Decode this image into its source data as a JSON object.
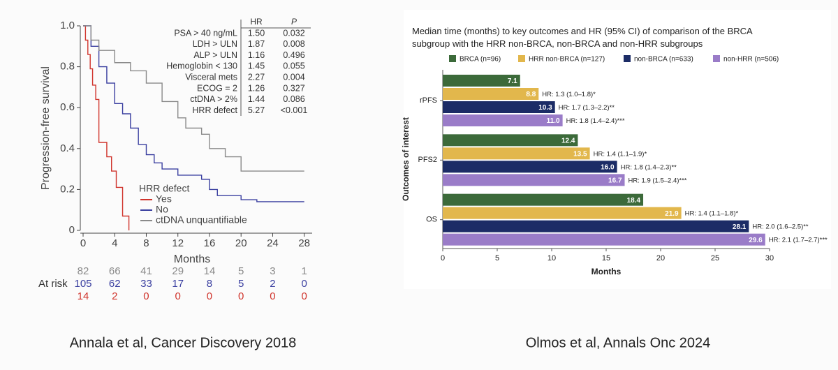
{
  "chart_data": [
    {
      "type": "step",
      "x_label": "Months",
      "y_label": "Progression-free survival",
      "xlim": [
        0,
        29
      ],
      "xticks": [
        0,
        4,
        8,
        12,
        16,
        20,
        24,
        28
      ],
      "ylim": [
        0,
        1
      ],
      "yticks": [
        0,
        0.2,
        0.4,
        0.6,
        0.8,
        {
          "value": 1,
          "label": "1.0"
        }
      ],
      "legend_title": "HRR defect",
      "series": [
        {
          "name": "Yes",
          "color": "#d0342c",
          "x": [
            0,
            0.3,
            0.6,
            0.9,
            1.2,
            1.6,
            2.0,
            3.0,
            3.6,
            4.2,
            5.0,
            5.8
          ],
          "y": [
            1,
            0.93,
            0.86,
            0.79,
            0.71,
            0.64,
            0.43,
            0.36,
            0.29,
            0.21,
            0.07,
            0
          ],
          "at_risk": [
            14,
            2,
            0,
            0,
            0,
            0,
            0,
            0
          ]
        },
        {
          "name": "No",
          "color": "#3a3fa0",
          "x": [
            0,
            1,
            2,
            3,
            4,
            5,
            6,
            7,
            8,
            9,
            10,
            12,
            15,
            16,
            17,
            20,
            22,
            28
          ],
          "y": [
            1,
            0.9,
            0.8,
            0.72,
            0.62,
            0.57,
            0.5,
            0.42,
            0.37,
            0.33,
            0.3,
            0.27,
            0.25,
            0.2,
            0.17,
            0.15,
            0.14,
            0.14
          ],
          "at_risk": [
            105,
            62,
            33,
            17,
            8,
            5,
            2,
            0
          ]
        },
        {
          "name": "ctDNA unquantifiable",
          "color": "#8a8a8a",
          "x": [
            0,
            1,
            2,
            4,
            6,
            8,
            10,
            12,
            13,
            15,
            16,
            18,
            20,
            28
          ],
          "y": [
            1,
            0.93,
            0.88,
            0.82,
            0.78,
            0.72,
            0.63,
            0.55,
            0.5,
            0.47,
            0.4,
            0.36,
            0.29,
            0.29
          ],
          "at_risk": [
            82,
            66,
            41,
            29,
            14,
            5,
            3,
            1
          ]
        }
      ],
      "at_risk_label": "At risk",
      "table": {
        "columns": [
          "HR",
          "P"
        ],
        "rows": [
          [
            "PSA > 40 ng/mL",
            "1.50",
            "0.032"
          ],
          [
            "LDH > ULN",
            "1.87",
            "0.008"
          ],
          [
            "ALP > ULN",
            "1.16",
            "0.496"
          ],
          [
            "Hemoglobin < 130",
            "1.45",
            "0.055"
          ],
          [
            "Visceral mets",
            "2.27",
            "0.004"
          ],
          [
            "ECOG = 2",
            "1.26",
            "0.327"
          ],
          [
            "ctDNA > 2%",
            "1.44",
            "0.086"
          ],
          [
            "HRR defect",
            "5.27",
            "<0.001"
          ]
        ]
      },
      "caption": "Annala et al, Cancer Discovery 2018"
    },
    {
      "type": "hbar",
      "title": "Median time (months) to key outcomes and HR (95% CI) of comparison of the BRCA subgroup with the HRR non-BRCA, non-BRCA and non-HRR subgroups",
      "x_label": "Months",
      "y_label": "Outcomes of interest",
      "xlim": [
        0,
        30
      ],
      "xticks": [
        0,
        5,
        10,
        15,
        20,
        25,
        30
      ],
      "categories": [
        "rPFS",
        "PFS2",
        "OS"
      ],
      "series": [
        {
          "name": "BRCA (n=96)",
          "color": "#3c6a3a",
          "values": [
            7.1,
            12.4,
            18.4
          ]
        },
        {
          "name": "HRR non-BRCA (n=127)",
          "color": "#e2b74c",
          "values": [
            8.8,
            13.5,
            21.9
          ],
          "hr_labels": [
            "HR: 1.3 (1.0–1.8)*",
            "HR: 1.4 (1.1–1.9)*",
            "HR: 1.4 (1.1–1.8)*"
          ]
        },
        {
          "name": "non-BRCA (n=633)",
          "color": "#1c2c66",
          "values": [
            10.3,
            16.0,
            28.1
          ],
          "value_labels": [
            "10.3",
            "16.0",
            "28.1"
          ],
          "hr_labels": [
            "HR: 1.7 (1.3–2.2)**",
            "HR: 1.8 (1.4–2.3)**",
            "HR: 2.0 (1.6–2.5)**"
          ]
        },
        {
          "name": "non-HRR (n=506)",
          "color": "#9a7cc8",
          "values": [
            11.0,
            16.7,
            29.6
          ],
          "value_labels": [
            "11.0",
            "16.7",
            "29.6"
          ],
          "hr_labels": [
            "HR: 1.8 (1.4–2.4)***",
            "HR: 1.9 (1.5–2.4)***",
            "HR: 2.1 (1.7–2.7)***"
          ]
        }
      ],
      "caption": "Olmos et al, Annals Onc 2024"
    }
  ]
}
